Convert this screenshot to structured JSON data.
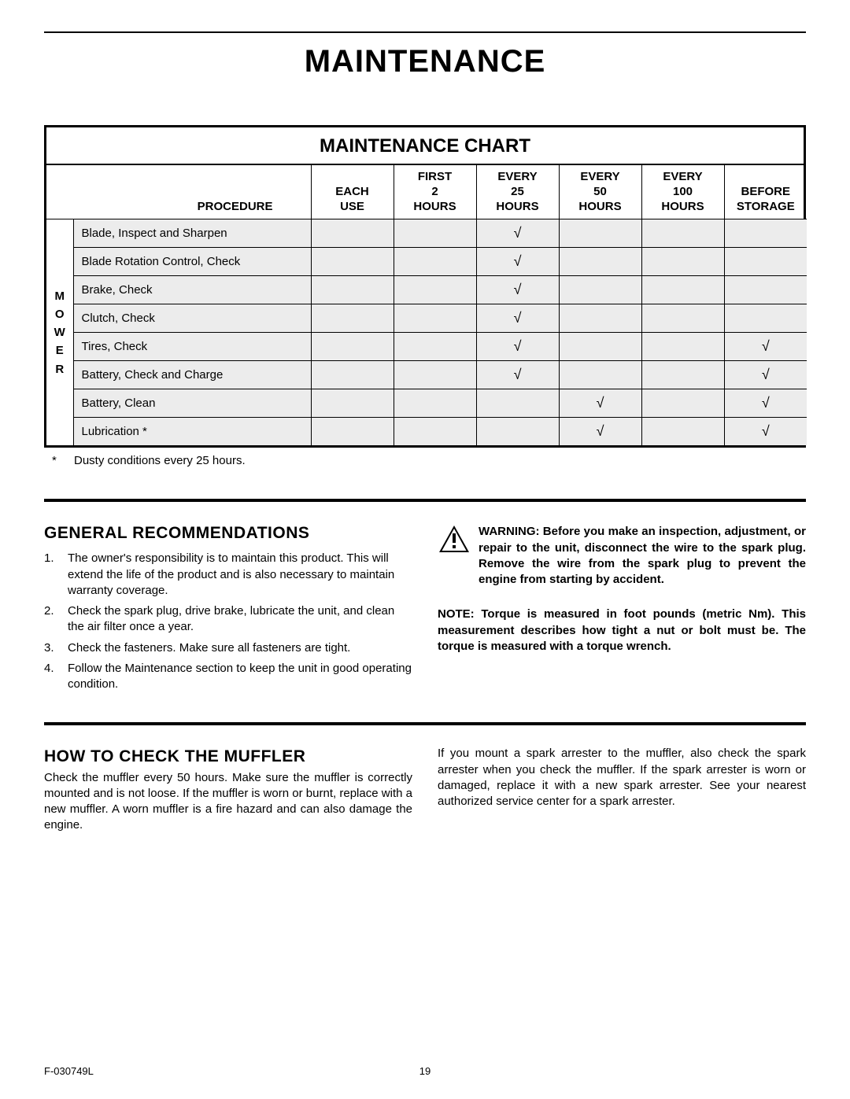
{
  "page_title": "MAINTENANCE",
  "chart": {
    "title": "MAINTENANCE CHART",
    "side_label": "M\nO\nW\nE\nR",
    "headers": {
      "procedure": "PROCEDURE",
      "each_use": "EACH\nUSE",
      "first_2": "FIRST\n2\nHOURS",
      "every_25": "EVERY\n25\nHOURS",
      "every_50": "EVERY\n50\nHOURS",
      "every_100": "EVERY\n100\nHOURS",
      "before_storage": "BEFORE\nSTORAGE"
    },
    "rows": [
      {
        "procedure": "Blade, Inspect and Sharpen",
        "each_use": "",
        "first_2": "",
        "every_25": "√",
        "every_50": "",
        "every_100": "",
        "before_storage": ""
      },
      {
        "procedure": "Blade Rotation Control, Check",
        "each_use": "",
        "first_2": "",
        "every_25": "√",
        "every_50": "",
        "every_100": "",
        "before_storage": ""
      },
      {
        "procedure": "Brake, Check",
        "each_use": "",
        "first_2": "",
        "every_25": "√",
        "every_50": "",
        "every_100": "",
        "before_storage": ""
      },
      {
        "procedure": "Clutch, Check",
        "each_use": "",
        "first_2": "",
        "every_25": "√",
        "every_50": "",
        "every_100": "",
        "before_storage": ""
      },
      {
        "procedure": "Tires, Check",
        "each_use": "",
        "first_2": "",
        "every_25": "√",
        "every_50": "",
        "every_100": "",
        "before_storage": "√"
      },
      {
        "procedure": "Battery, Check and Charge",
        "each_use": "",
        "first_2": "",
        "every_25": "√",
        "every_50": "",
        "every_100": "",
        "before_storage": "√"
      },
      {
        "procedure": "Battery, Clean",
        "each_use": "",
        "first_2": "",
        "every_25": "",
        "every_50": "√",
        "every_100": "",
        "before_storage": "√"
      },
      {
        "procedure": "Lubrication *",
        "each_use": "",
        "first_2": "",
        "every_25": "",
        "every_50": "√",
        "every_100": "",
        "before_storage": "√"
      }
    ],
    "footnote_star": "*",
    "footnote": "Dusty conditions every 25 hours.",
    "col_widths": {
      "side": "34px",
      "proc": "302px",
      "interval": "105px"
    },
    "row_bg": "#ececec",
    "border_color": "#000000"
  },
  "general": {
    "heading": "GENERAL RECOMMENDATIONS",
    "items": [
      "The owner's responsibility is to maintain this product. This will extend the life of the product and is also necessary to maintain warranty coverage.",
      "Check the spark plug, drive brake, lubricate the unit, and clean the air filter once a year.",
      "Check the fasteners. Make sure all fasteners are tight.",
      "Follow the Maintenance section to keep the unit in good operating condition."
    ],
    "warning_label": "WARNING: ",
    "warning_text": "Before you make an inspection, adjustment, or repair to the unit, disconnect the wire to the spark plug. Remove the wire from the spark plug to prevent the engine from starting by accident.",
    "note_label": "NOTE: ",
    "note_text": "Torque is measured in foot pounds (metric Nm). This measurement describes how tight a nut or bolt must be. The torque is measured with a torque wrench."
  },
  "muffler": {
    "heading": "HOW TO CHECK THE MUFFLER",
    "left": "Check the muffler every 50 hours. Make sure the muffler is correctly mounted and is not loose. If the muffler is worn or burnt, replace with a new muffler. A worn muffler is a fire hazard and can also damage the engine.",
    "right": "If you mount a spark arrester to the muffler, also check the spark arrester when you check the muffler. If the spark arrester is worn or damaged, replace it with a new spark arrester. See your nearest authorized service center for a spark arrester."
  },
  "footer": {
    "doc_id": "F-030749L",
    "page_num": "19"
  },
  "colors": {
    "background": "#ffffff",
    "text": "#000000"
  }
}
